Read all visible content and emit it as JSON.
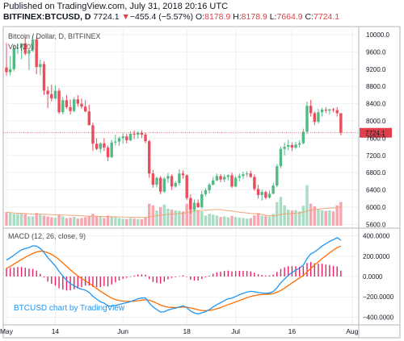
{
  "header": {
    "published": "Published on TradingView.com, July 31, 2018 20:16 UTC",
    "symbol": "BITFINEX:BTCUSD, D",
    "last": "7724.1",
    "change_arrow": "▼",
    "change": "−455.4 (−5.57%)",
    "o_label": "O:",
    "o_value": "8178.9",
    "h_label": "H:",
    "h_value": "8178.9",
    "l_label": "L:",
    "l_value": "7664.9",
    "c_label": "C:",
    "c_value": "7724.1"
  },
  "colors": {
    "up": "#53b987",
    "down": "#eb4d5c",
    "vol_up": "#a9dcc3",
    "vol_down": "#f5a6ae",
    "ma": "#f0a57a",
    "macd": "#2196f3",
    "signal": "#ff6d00",
    "hist": "#e91e63",
    "last_price": "#e0404a"
  },
  "chart_data": [
    {
      "type": "candlestick",
      "title": "Bitcoin / Dollar, D, BITFINEX",
      "volume_label": "Vol (20)",
      "y_ticks": [
        10000,
        9600,
        9200,
        8800,
        8400,
        8000,
        7600,
        7200,
        6800,
        6400,
        6000,
        5600
      ],
      "y_tick_labels": [
        "10000.0",
        "9600.0",
        "9200.0",
        "8800.0",
        "8400.0",
        "8000.0",
        "7600.0",
        "7200.0",
        "6800.0",
        "6400.0",
        "6000.0",
        "5600.0"
      ],
      "ylim": [
        5550,
        10150
      ],
      "x_tick_labels": [
        "May",
        "14",
        "Jun",
        "18",
        "Jul",
        "16",
        "Aug"
      ],
      "x_tick_index": [
        0,
        13,
        31,
        48,
        61,
        76,
        92
      ],
      "last_price_label": "7724.1",
      "last_price": 7724.1,
      "candles": [
        [
          9240,
          9800,
          9050,
          9130
        ],
        [
          9130,
          9500,
          9060,
          9200
        ],
        [
          9200,
          9780,
          9150,
          9680
        ],
        [
          9680,
          9800,
          9550,
          9700
        ],
        [
          9700,
          9800,
          9430,
          9800
        ],
        [
          9800,
          9950,
          9520,
          9560
        ],
        [
          9560,
          9660,
          9180,
          9640
        ],
        [
          9640,
          9990,
          9600,
          9890
        ],
        [
          9890,
          9950,
          9080,
          9250
        ],
        [
          9250,
          9420,
          9060,
          9320
        ],
        [
          9320,
          9380,
          8600,
          8700
        ],
        [
          8700,
          8800,
          8300,
          8620
        ],
        [
          8620,
          8840,
          8450,
          8520
        ],
        [
          8520,
          8820,
          8500,
          8700
        ],
        [
          8700,
          8760,
          8160,
          8200
        ],
        [
          8200,
          8550,
          8150,
          8480
        ],
        [
          8480,
          8600,
          8280,
          8320
        ],
        [
          8320,
          8500,
          8150,
          8230
        ],
        [
          8230,
          8550,
          8200,
          8500
        ],
        [
          8500,
          8600,
          8330,
          8400
        ],
        [
          8400,
          8520,
          8280,
          8330
        ],
        [
          8330,
          8480,
          8200,
          8220
        ],
        [
          8220,
          8380,
          7900,
          7900
        ],
        [
          7900,
          7960,
          7300,
          7470
        ],
        [
          7470,
          7600,
          7320,
          7350
        ],
        [
          7350,
          7500,
          7260,
          7480
        ],
        [
          7480,
          7600,
          7300,
          7380
        ],
        [
          7380,
          7430,
          7060,
          7160
        ],
        [
          7160,
          7560,
          7140,
          7500
        ],
        [
          7500,
          7680,
          7430,
          7520
        ],
        [
          7520,
          7640,
          7420,
          7600
        ],
        [
          7600,
          7720,
          7470,
          7640
        ],
        [
          7640,
          7700,
          7480,
          7550
        ],
        [
          7550,
          7760,
          7530,
          7700
        ],
        [
          7700,
          7780,
          7580,
          7680
        ],
        [
          7680,
          7760,
          7590,
          7720
        ],
        [
          7720,
          7780,
          7600,
          7680
        ],
        [
          7680,
          7720,
          7480,
          7530
        ],
        [
          7530,
          7560,
          6680,
          6780
        ],
        [
          6780,
          6860,
          6450,
          6520
        ],
        [
          6520,
          6700,
          6460,
          6680
        ],
        [
          6680,
          6720,
          6300,
          6360
        ],
        [
          6360,
          6700,
          6330,
          6660
        ],
        [
          6660,
          6790,
          6560,
          6720
        ],
        [
          6720,
          6760,
          6400,
          6480
        ],
        [
          6480,
          6600,
          6450,
          6560
        ],
        [
          6560,
          6880,
          6500,
          6780
        ],
        [
          6780,
          6850,
          6660,
          6740
        ],
        [
          6740,
          6760,
          6160,
          6210
        ],
        [
          6210,
          6300,
          5850,
          5950
        ],
        [
          5950,
          6180,
          5900,
          6100
        ],
        [
          6100,
          6180,
          5980,
          6000
        ],
        [
          6000,
          6380,
          5960,
          6300
        ],
        [
          6300,
          6440,
          6250,
          6390
        ],
        [
          6390,
          6560,
          6320,
          6520
        ],
        [
          6520,
          6700,
          6500,
          6620
        ],
        [
          6620,
          6780,
          6600,
          6720
        ],
        [
          6720,
          6770,
          6580,
          6640
        ],
        [
          6640,
          6760,
          6580,
          6700
        ],
        [
          6700,
          6760,
          6620,
          6740
        ],
        [
          6740,
          6800,
          6440,
          6480
        ],
        [
          6480,
          6720,
          6460,
          6680
        ],
        [
          6680,
          6780,
          6600,
          6720
        ],
        [
          6720,
          6820,
          6650,
          6760
        ],
        [
          6760,
          6830,
          6700,
          6780
        ],
        [
          6780,
          6850,
          6680,
          6700
        ],
        [
          6700,
          6760,
          6380,
          6420
        ],
        [
          6420,
          6520,
          6200,
          6280
        ],
        [
          6280,
          6400,
          6150,
          6350
        ],
        [
          6350,
          6380,
          6180,
          6220
        ],
        [
          6220,
          6380,
          6200,
          6310
        ],
        [
          6310,
          6560,
          6300,
          6500
        ],
        [
          6500,
          7000,
          6460,
          6950
        ],
        [
          6950,
          7400,
          6900,
          7350
        ],
        [
          7350,
          7500,
          7200,
          7400
        ],
        [
          7400,
          7560,
          7320,
          7440
        ],
        [
          7440,
          7500,
          7300,
          7380
        ],
        [
          7380,
          7520,
          7350,
          7450
        ],
        [
          7450,
          7550,
          7380,
          7480
        ],
        [
          7480,
          7820,
          7460,
          7750
        ],
        [
          7750,
          8450,
          7700,
          8350
        ],
        [
          8350,
          8490,
          8100,
          8180
        ],
        [
          8180,
          8220,
          7900,
          7980
        ],
        [
          7980,
          8280,
          7940,
          8200
        ],
        [
          8200,
          8300,
          8100,
          8260
        ],
        [
          8260,
          8320,
          8180,
          8240
        ],
        [
          8240,
          8280,
          8150,
          8270
        ],
        [
          8270,
          8300,
          8200,
          8250
        ],
        [
          8250,
          8320,
          8100,
          8179
        ],
        [
          8179,
          8179,
          7665,
          7724
        ]
      ],
      "volumes": [
        80,
        75,
        70,
        70,
        72,
        68,
        55,
        55,
        75,
        65,
        60,
        55,
        50,
        48,
        62,
        55,
        45,
        48,
        52,
        42,
        45,
        50,
        55,
        70,
        55,
        52,
        45,
        60,
        55,
        50,
        45,
        42,
        40,
        45,
        42,
        40,
        38,
        50,
        130,
        120,
        90,
        110,
        125,
        100,
        95,
        90,
        88,
        85,
        130,
        160,
        110,
        90,
        85,
        60,
        70,
        65,
        60,
        52,
        55,
        50,
        58,
        52,
        48,
        45,
        42,
        45,
        62,
        75,
        60,
        58,
        55,
        70,
        140,
        170,
        120,
        95,
        90,
        92,
        85,
        118,
        240,
        130,
        115,
        98,
        92,
        88,
        90,
        85,
        120,
        140
      ]
    },
    {
      "type": "macd",
      "label": "MACD (12, 26, close, 9)",
      "y_ticks": [
        400,
        200,
        0,
        -200,
        -400
      ],
      "y_tick_labels": [
        "400.0000",
        "200.0000",
        "0.0000",
        "−200.0000",
        "−400.0000"
      ],
      "ylim": [
        -460,
        460
      ],
      "watermark": "BTCUSD chart by TradingView",
      "macd": [
        160,
        185,
        210,
        238,
        262,
        275,
        285,
        302,
        300,
        275,
        236,
        185,
        145,
        105,
        50,
        5,
        -38,
        -70,
        -90,
        -112,
        -125,
        -135,
        -156,
        -195,
        -222,
        -248,
        -262,
        -290,
        -290,
        -285,
        -276,
        -265,
        -258,
        -247,
        -233,
        -218,
        -212,
        -210,
        -260,
        -300,
        -325,
        -350,
        -346,
        -330,
        -318,
        -312,
        -300,
        -288,
        -305,
        -340,
        -358,
        -368,
        -358,
        -345,
        -325,
        -300,
        -276,
        -258,
        -236,
        -218,
        -213,
        -196,
        -180,
        -166,
        -152,
        -146,
        -150,
        -158,
        -162,
        -165,
        -161,
        -148,
        -110,
        -62,
        -25,
        12,
        40,
        63,
        82,
        112,
        178,
        223,
        243,
        270,
        300,
        323,
        346,
        362,
        383,
        358
      ],
      "signal": [
        80,
        100,
        122,
        145,
        168,
        189,
        208,
        227,
        242,
        249,
        247,
        235,
        217,
        195,
        166,
        134,
        100,
        66,
        35,
        5,
        -21,
        -44,
        -67,
        -92,
        -118,
        -144,
        -168,
        -192,
        -212,
        -227,
        -237,
        -242,
        -245,
        -245,
        -243,
        -238,
        -233,
        -228,
        -234,
        -247,
        -263,
        -281,
        -294,
        -301,
        -304,
        -305,
        -304,
        -300,
        -301,
        -309,
        -318,
        -328,
        -334,
        -336,
        -334,
        -327,
        -317,
        -305,
        -291,
        -276,
        -264,
        -250,
        -236,
        -222,
        -208,
        -196,
        -187,
        -181,
        -177,
        -175,
        -172,
        -167,
        -155,
        -137,
        -115,
        -89,
        -63,
        -38,
        -14,
        11,
        44,
        80,
        113,
        144,
        175,
        205,
        233,
        259,
        284,
        300
      ]
    }
  ]
}
